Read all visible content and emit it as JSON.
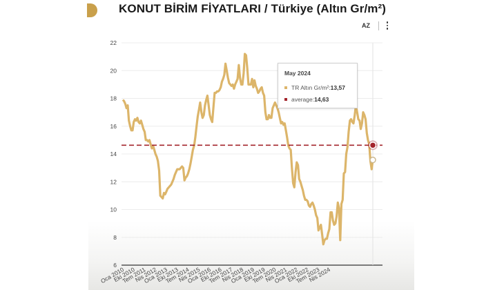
{
  "header": {
    "title": "KONUT BİRİM FİYATLARI / Türkiye (Altın Gr/m²)",
    "sort_button": "AZ",
    "menu_icon": "more-vertical-icon",
    "logo_icon": "gold-half-circle-logo"
  },
  "tooltip": {
    "title": "May 2024",
    "series_label": "TR Altın Gr/m²: ",
    "series_value": "13,57",
    "average_label": "average: ",
    "average_value": "14,63"
  },
  "colors": {
    "series": "#dcb56a",
    "average": "#a3232b",
    "grid": "#ececec",
    "axis": "#333333",
    "logo": "#c9a04b"
  },
  "chart_data": {
    "type": "line",
    "title": "KONUT BİRİM FİYATLARI / Türkiye (Altın Gr/m²)",
    "xlabel": "",
    "ylabel": "",
    "ylim": [
      6,
      22
    ],
    "yticks": [
      6,
      8,
      10,
      12,
      14,
      16,
      18,
      20,
      22
    ],
    "grid": true,
    "legend": "none (tooltip shown)",
    "x_start": "Oca 2010",
    "x_end": "May 2024",
    "x_tick_labels": [
      "Oca 2010",
      "Eki 2010",
      "Tem 2011",
      "Nis 2012",
      "Oca 2013",
      "Eki 2013",
      "Tem 2014",
      "Nis 2015",
      "Oca 2016",
      "Eki 2016",
      "Tem 2017",
      "Nis 2018",
      "Oca 2019",
      "Eki 2019",
      "Tem 2020",
      "Nis 2021",
      "Oca 2022",
      "Eki 2022",
      "Tem 2023",
      "Nis 2024"
    ],
    "series": [
      {
        "name": "TR Altın Gr/m²",
        "frequency": "monthly",
        "values": [
          17.9,
          17.8,
          17.6,
          17.3,
          17.5,
          16.4,
          16.0,
          15.7,
          15.7,
          16.3,
          16.5,
          16.4,
          16.6,
          16.3,
          16.2,
          16.4,
          16.1,
          15.8,
          15.6,
          15.0,
          15.0,
          14.9,
          15.0,
          14.7,
          14.4,
          14.6,
          14.3,
          14.0,
          13.8,
          13.5,
          12.8,
          11.0,
          10.9,
          10.8,
          11.2,
          11.1,
          11.3,
          11.5,
          11.6,
          11.7,
          11.8,
          12.0,
          12.2,
          12.5,
          12.7,
          12.9,
          12.9,
          12.9,
          13.0,
          13.1,
          13.0,
          12.1,
          12.3,
          12.4,
          12.6,
          12.9,
          13.3,
          13.8,
          14.3,
          14.6,
          15.2,
          16.0,
          16.7,
          17.2,
          17.7,
          17.0,
          16.6,
          16.8,
          17.5,
          17.9,
          18.2,
          17.5,
          16.8,
          16.5,
          16.3,
          17.4,
          18.4,
          18.4,
          18.5,
          18.5,
          18.6,
          18.8,
          19.2,
          19.4,
          19.7,
          20.5,
          20.0,
          19.5,
          19.1,
          19.0,
          18.9,
          19.0,
          18.7,
          19.0,
          19.2,
          19.4,
          20.4,
          19.5,
          19.0,
          19.0,
          19.8,
          21.2,
          21.1,
          20.2,
          19.0,
          19.0,
          19.0,
          19.4,
          18.8,
          19.3,
          18.9,
          18.7,
          18.4,
          18.5,
          18.7,
          18.8,
          18.4,
          18.2,
          17.0,
          16.5,
          16.5,
          16.8,
          16.6,
          16.6,
          17.3,
          17.5,
          17.7,
          17.5,
          17.3,
          17.0,
          16.6,
          16.2,
          16.3,
          16.1,
          16.2,
          15.7,
          15.2,
          14.6,
          14.4,
          14.3,
          13.0,
          11.9,
          11.6,
          12.7,
          13.4,
          13.2,
          12.2,
          12.0,
          11.7,
          11.4,
          11.0,
          10.7,
          10.7,
          10.6,
          10.3,
          10.2,
          10.4,
          10.5,
          10.3,
          10.0,
          9.6,
          9.4,
          8.5,
          8.7,
          8.9,
          8.2,
          7.5,
          7.8,
          7.9,
          7.9,
          8.3,
          8.6,
          9.8,
          9.8,
          9.2,
          8.9,
          9.0,
          9.5,
          10.5,
          10.1,
          7.8,
          10.4,
          10.7,
          12.6,
          12.7,
          14.0,
          14.5,
          15.6,
          16.4,
          16.5,
          16.3,
          16.2,
          16.8,
          17.5,
          17.0,
          16.5,
          16.4,
          15.8,
          16.2,
          17.0,
          16.8,
          16.5,
          15.5,
          15.0,
          14.7,
          13.5,
          12.9,
          13.57
        ]
      },
      {
        "name": "average",
        "constant": 14.63,
        "style": "dashed"
      }
    ],
    "highlighted_point": {
      "x": "May 2024",
      "value": 13.57,
      "average": 14.63
    }
  }
}
